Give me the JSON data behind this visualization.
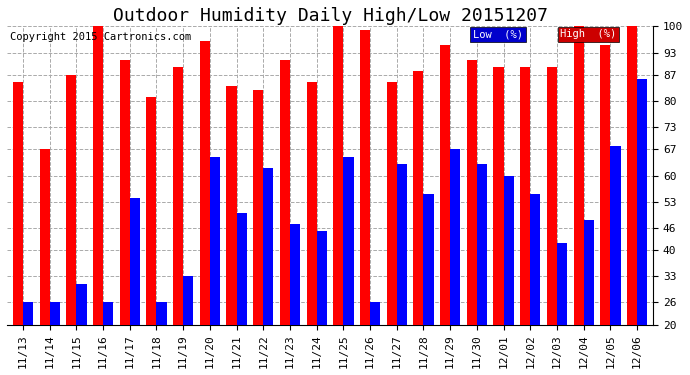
{
  "title": "Outdoor Humidity Daily High/Low 20151207",
  "copyright": "Copyright 2015 Cartronics.com",
  "legend_low": "Low  (%)",
  "legend_high": "High  (%)",
  "dates": [
    "11/13",
    "11/14",
    "11/15",
    "11/16",
    "11/17",
    "11/18",
    "11/19",
    "11/20",
    "11/21",
    "11/22",
    "11/23",
    "11/24",
    "11/25",
    "11/26",
    "11/27",
    "11/28",
    "11/29",
    "11/30",
    "12/01",
    "12/02",
    "12/03",
    "12/04",
    "12/05",
    "12/06"
  ],
  "high": [
    85,
    67,
    87,
    100,
    91,
    81,
    89,
    96,
    84,
    83,
    91,
    85,
    100,
    99,
    85,
    88,
    95,
    91,
    89,
    89,
    89,
    100,
    95,
    100
  ],
  "low": [
    26,
    26,
    31,
    26,
    54,
    26,
    33,
    65,
    50,
    62,
    47,
    45,
    65,
    26,
    63,
    55,
    67,
    63,
    60,
    55,
    42,
    48,
    68,
    86
  ],
  "ylim": [
    20,
    100
  ],
  "yticks": [
    20,
    26,
    33,
    40,
    46,
    53,
    60,
    67,
    73,
    80,
    87,
    93,
    100
  ],
  "bar_width": 0.38,
  "high_color": "#ff0000",
  "low_color": "#0000ff",
  "bg_color": "#ffffff",
  "grid_color": "#aaaaaa",
  "legend_low_bg": "#0000cc",
  "legend_high_bg": "#cc0000",
  "title_fontsize": 13,
  "tick_fontsize": 8,
  "copyright_fontsize": 7.5
}
